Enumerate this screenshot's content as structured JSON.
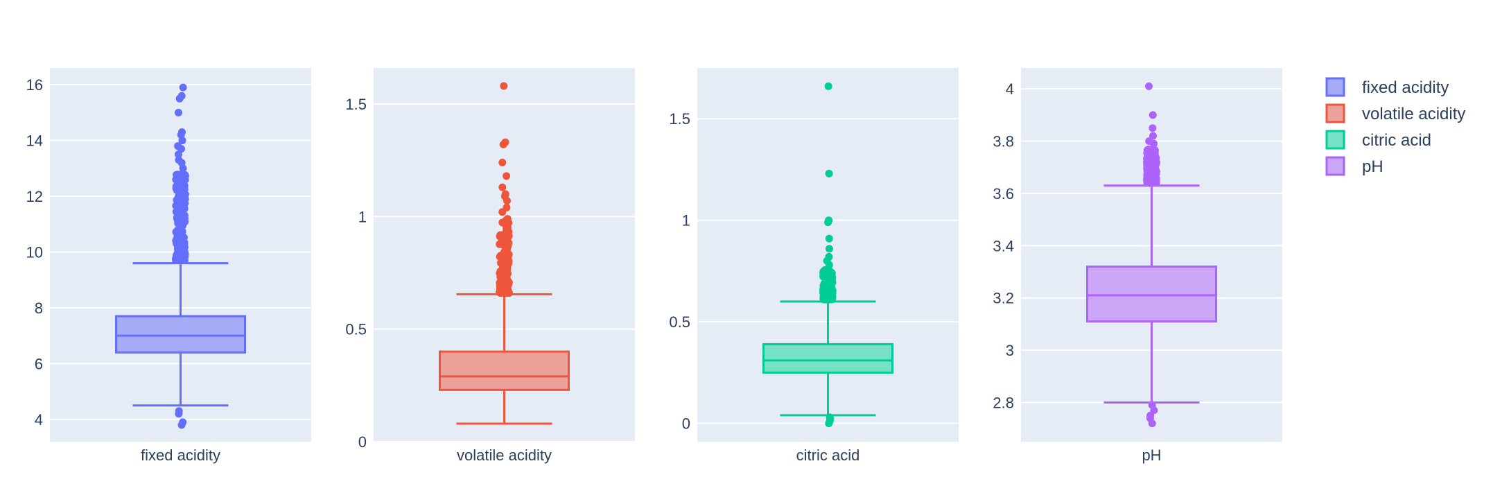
{
  "chart_data": {
    "type": "box",
    "grid": true,
    "legend_position": "top-right",
    "legend": [
      {
        "name": "fixed acidity",
        "color": "#636efa"
      },
      {
        "name": "volatile acidity",
        "color": "#ef553b"
      },
      {
        "name": "citric acid",
        "color": "#00cc96"
      },
      {
        "name": "pH",
        "color": "#ab63fa"
      }
    ],
    "subplots": [
      {
        "name": "fixed acidity",
        "color": "#636efa",
        "fill": "#a5abf6",
        "category": "fixed acidity",
        "ylim": [
          3.2,
          16.6
        ],
        "yticks": [
          4,
          6,
          8,
          10,
          12,
          14,
          16
        ],
        "ytick_labels": [
          "4",
          "6",
          "8",
          "10",
          "12",
          "14",
          "16"
        ],
        "box": {
          "lowerfence": 4.5,
          "q1": 6.4,
          "median": 7.0,
          "q3": 7.7,
          "upperfence": 9.6
        },
        "outliers_high_range": [
          9.7,
          12.8
        ],
        "outliers": [
          3.8,
          3.9,
          4.2,
          4.3,
          13.0,
          13.2,
          13.3,
          13.5,
          13.7,
          13.8,
          14.0,
          14.2,
          14.3,
          15.0,
          15.5,
          15.6,
          15.9
        ]
      },
      {
        "name": "volatile acidity",
        "color": "#ef553b",
        "fill": "#eca29a",
        "category": "volatile acidity",
        "ylim": [
          0,
          1.66
        ],
        "yticks": [
          0,
          0.5,
          1,
          1.5
        ],
        "ytick_labels": [
          "0",
          "0.5",
          "1",
          "1.5"
        ],
        "box": {
          "lowerfence": 0.08,
          "q1": 0.23,
          "median": 0.29,
          "q3": 0.4,
          "upperfence": 0.655
        },
        "outliers_high_range": [
          0.66,
          1.0
        ],
        "outliers": [
          1.02,
          1.04,
          1.07,
          1.09,
          1.1,
          1.13,
          1.18,
          1.24,
          1.32,
          1.33,
          1.58
        ]
      },
      {
        "name": "citric acid",
        "color": "#00cc96",
        "fill": "#76e1c4",
        "category": "citric acid",
        "ylim": [
          -0.09,
          1.75
        ],
        "yticks": [
          0,
          0.5,
          1,
          1.5
        ],
        "ytick_labels": [
          "0",
          "0.5",
          "1",
          "1.5"
        ],
        "box": {
          "lowerfence": 0.04,
          "q1": 0.25,
          "median": 0.31,
          "q3": 0.39,
          "upperfence": 0.6
        },
        "outliers_high_range": [
          0.61,
          0.76
        ],
        "outliers": [
          0.0,
          0.01,
          0.02,
          0.03,
          0.78,
          0.8,
          0.82,
          0.86,
          0.91,
          0.99,
          1.0,
          1.23,
          1.66
        ]
      },
      {
        "name": "pH",
        "color": "#ab63fa",
        "fill": "#cba6f6",
        "category": "pH",
        "ylim": [
          2.65,
          4.08
        ],
        "yticks": [
          2.8,
          3,
          3.2,
          3.4,
          3.6,
          3.8,
          4
        ],
        "ytick_labels": [
          "2.8",
          "3",
          "3.2",
          "3.4",
          "3.6",
          "3.8",
          "4"
        ],
        "box": {
          "lowerfence": 2.8,
          "q1": 3.11,
          "median": 3.21,
          "q3": 3.32,
          "upperfence": 3.63
        },
        "outliers_high_range": [
          3.64,
          3.77
        ],
        "outliers": [
          2.72,
          2.74,
          2.75,
          2.77,
          2.79,
          3.79,
          3.8,
          3.82,
          3.85,
          3.9,
          4.01
        ]
      }
    ]
  }
}
